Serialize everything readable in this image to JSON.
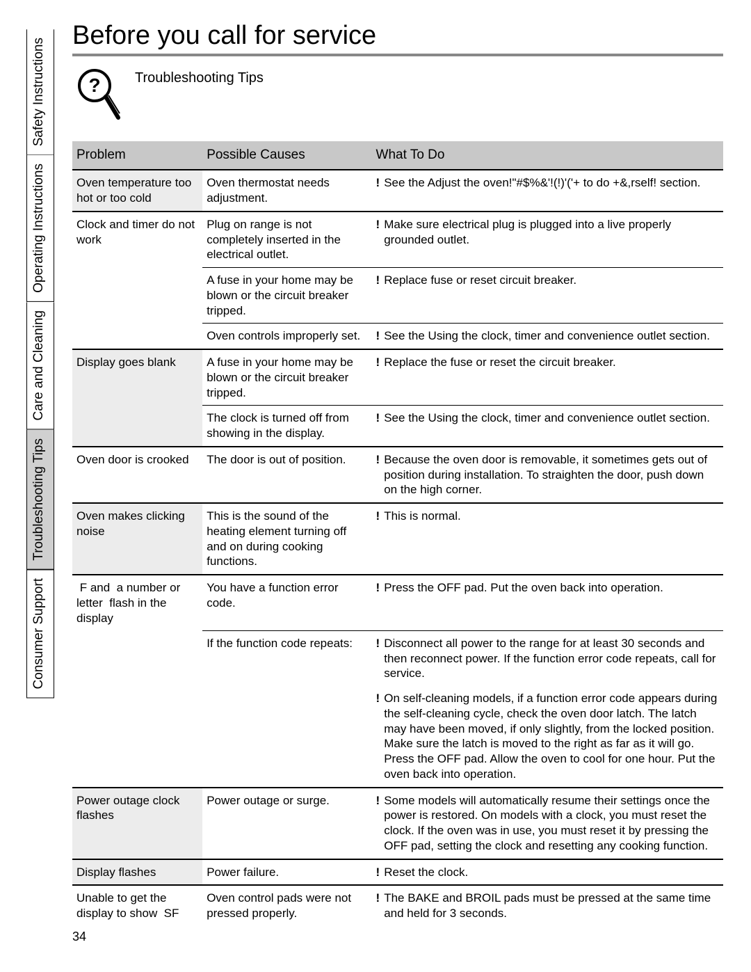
{
  "page_number": "34",
  "title": "Before you call for service",
  "subtitle": "Troubleshooting Tips",
  "tabs": [
    {
      "label": "Safety Instructions",
      "active": false
    },
    {
      "label": "Operating Instructions",
      "active": false
    },
    {
      "label": "Care and Cleaning",
      "active": false
    },
    {
      "label": "Troubleshooting Tips",
      "active": true
    },
    {
      "label": "Consumer Support",
      "active": false
    }
  ],
  "headers": {
    "problem": "Problem",
    "cause": "Possible Causes",
    "todo": "What To Do"
  },
  "rows": [
    {
      "kind": "group",
      "grey": true,
      "problem": "Oven temperature too hot or too cold",
      "cause": "Oven thermostat needs adjustment.",
      "todo": "See the Adjust the oven!\"#$%&'!(!)'('+    to do +&,rself! section."
    },
    {
      "kind": "group",
      "grey": false,
      "problem": "Clock and timer do not work",
      "cause": "Plug on range is not completely inserted in the electrical outlet.",
      "todo": "Make sure electrical plug is plugged into a live properly grounded outlet."
    },
    {
      "kind": "sub",
      "grey": false,
      "problem": "",
      "cause": "A fuse in your home may be blown or the circuit breaker tripped.",
      "todo": "Replace fuse or reset circuit breaker."
    },
    {
      "kind": "sub",
      "grey": false,
      "problem": "",
      "cause": "Oven controls improperly set.",
      "todo": "See the Using the clock, timer and convenience outlet section."
    },
    {
      "kind": "group",
      "grey": true,
      "problem": "Display goes blank",
      "cause": "A fuse in your home may be blown or the circuit breaker tripped.",
      "todo": "Replace the fuse or reset the circuit breaker."
    },
    {
      "kind": "sub",
      "grey": true,
      "problem": "",
      "cause": "The clock is turned off from showing in the display.",
      "todo": "See the Using the clock, timer and convenience outlet section."
    },
    {
      "kind": "group",
      "grey": false,
      "problem": "Oven door is crooked",
      "cause": "The door is out of position.",
      "todo": "Because the oven door is removable, it sometimes gets out of position during installation. To straighten the door, push down on the high corner."
    },
    {
      "kind": "group",
      "grey": true,
      "problem": "Oven makes clicking noise",
      "cause": "This is the sound of the heating element turning off and on during cooking functions.",
      "todo": "This is normal."
    },
    {
      "kind": "group",
      "grey": false,
      "problem": " F and  a number or letter  flash in the display",
      "cause": "You have a function error code.",
      "todo": "Press the OFF pad. Put the oven back into operation."
    },
    {
      "kind": "sub",
      "grey": false,
      "problem": "",
      "cause": "If the function code repeats:",
      "todo": "Disconnect all power to the range for at least 30 seconds and then reconnect power. If the function error code repeats, call for service."
    },
    {
      "kind": "cont",
      "grey": false,
      "problem": "",
      "cause": "",
      "todo": "On self-cleaning models, if a function error code appears during the self-cleaning cycle, check the oven door latch. The latch may have been moved, if only slightly, from the locked position. Make sure the latch is moved to the right as far as it will go. Press the OFF pad. Allow the oven to cool for one hour. Put the oven back into operation."
    },
    {
      "kind": "group",
      "grey": true,
      "problem": "Power outage clock flashes",
      "cause": "Power outage or surge.",
      "todo": "Some models will automatically resume their settings once the power is restored. On models with a clock, you must reset the clock. If the oven was in use, you must reset it by pressing the OFF pad, setting the clock and resetting any cooking function."
    },
    {
      "kind": "group",
      "grey": true,
      "problem": "Display flashes",
      "cause": "Power failure.",
      "todo": "Reset the clock."
    },
    {
      "kind": "group",
      "grey": false,
      "problem": "Unable to get the display to show  SF ",
      "cause": "Oven control pads were not pressed properly.",
      "todo": "The BAKE and BROIL pads must be pressed at the same time and held for 3 seconds."
    }
  ],
  "colors": {
    "header_bg": "#c8c8c8",
    "grey_bg": "#ececec",
    "rule": "#000000"
  }
}
